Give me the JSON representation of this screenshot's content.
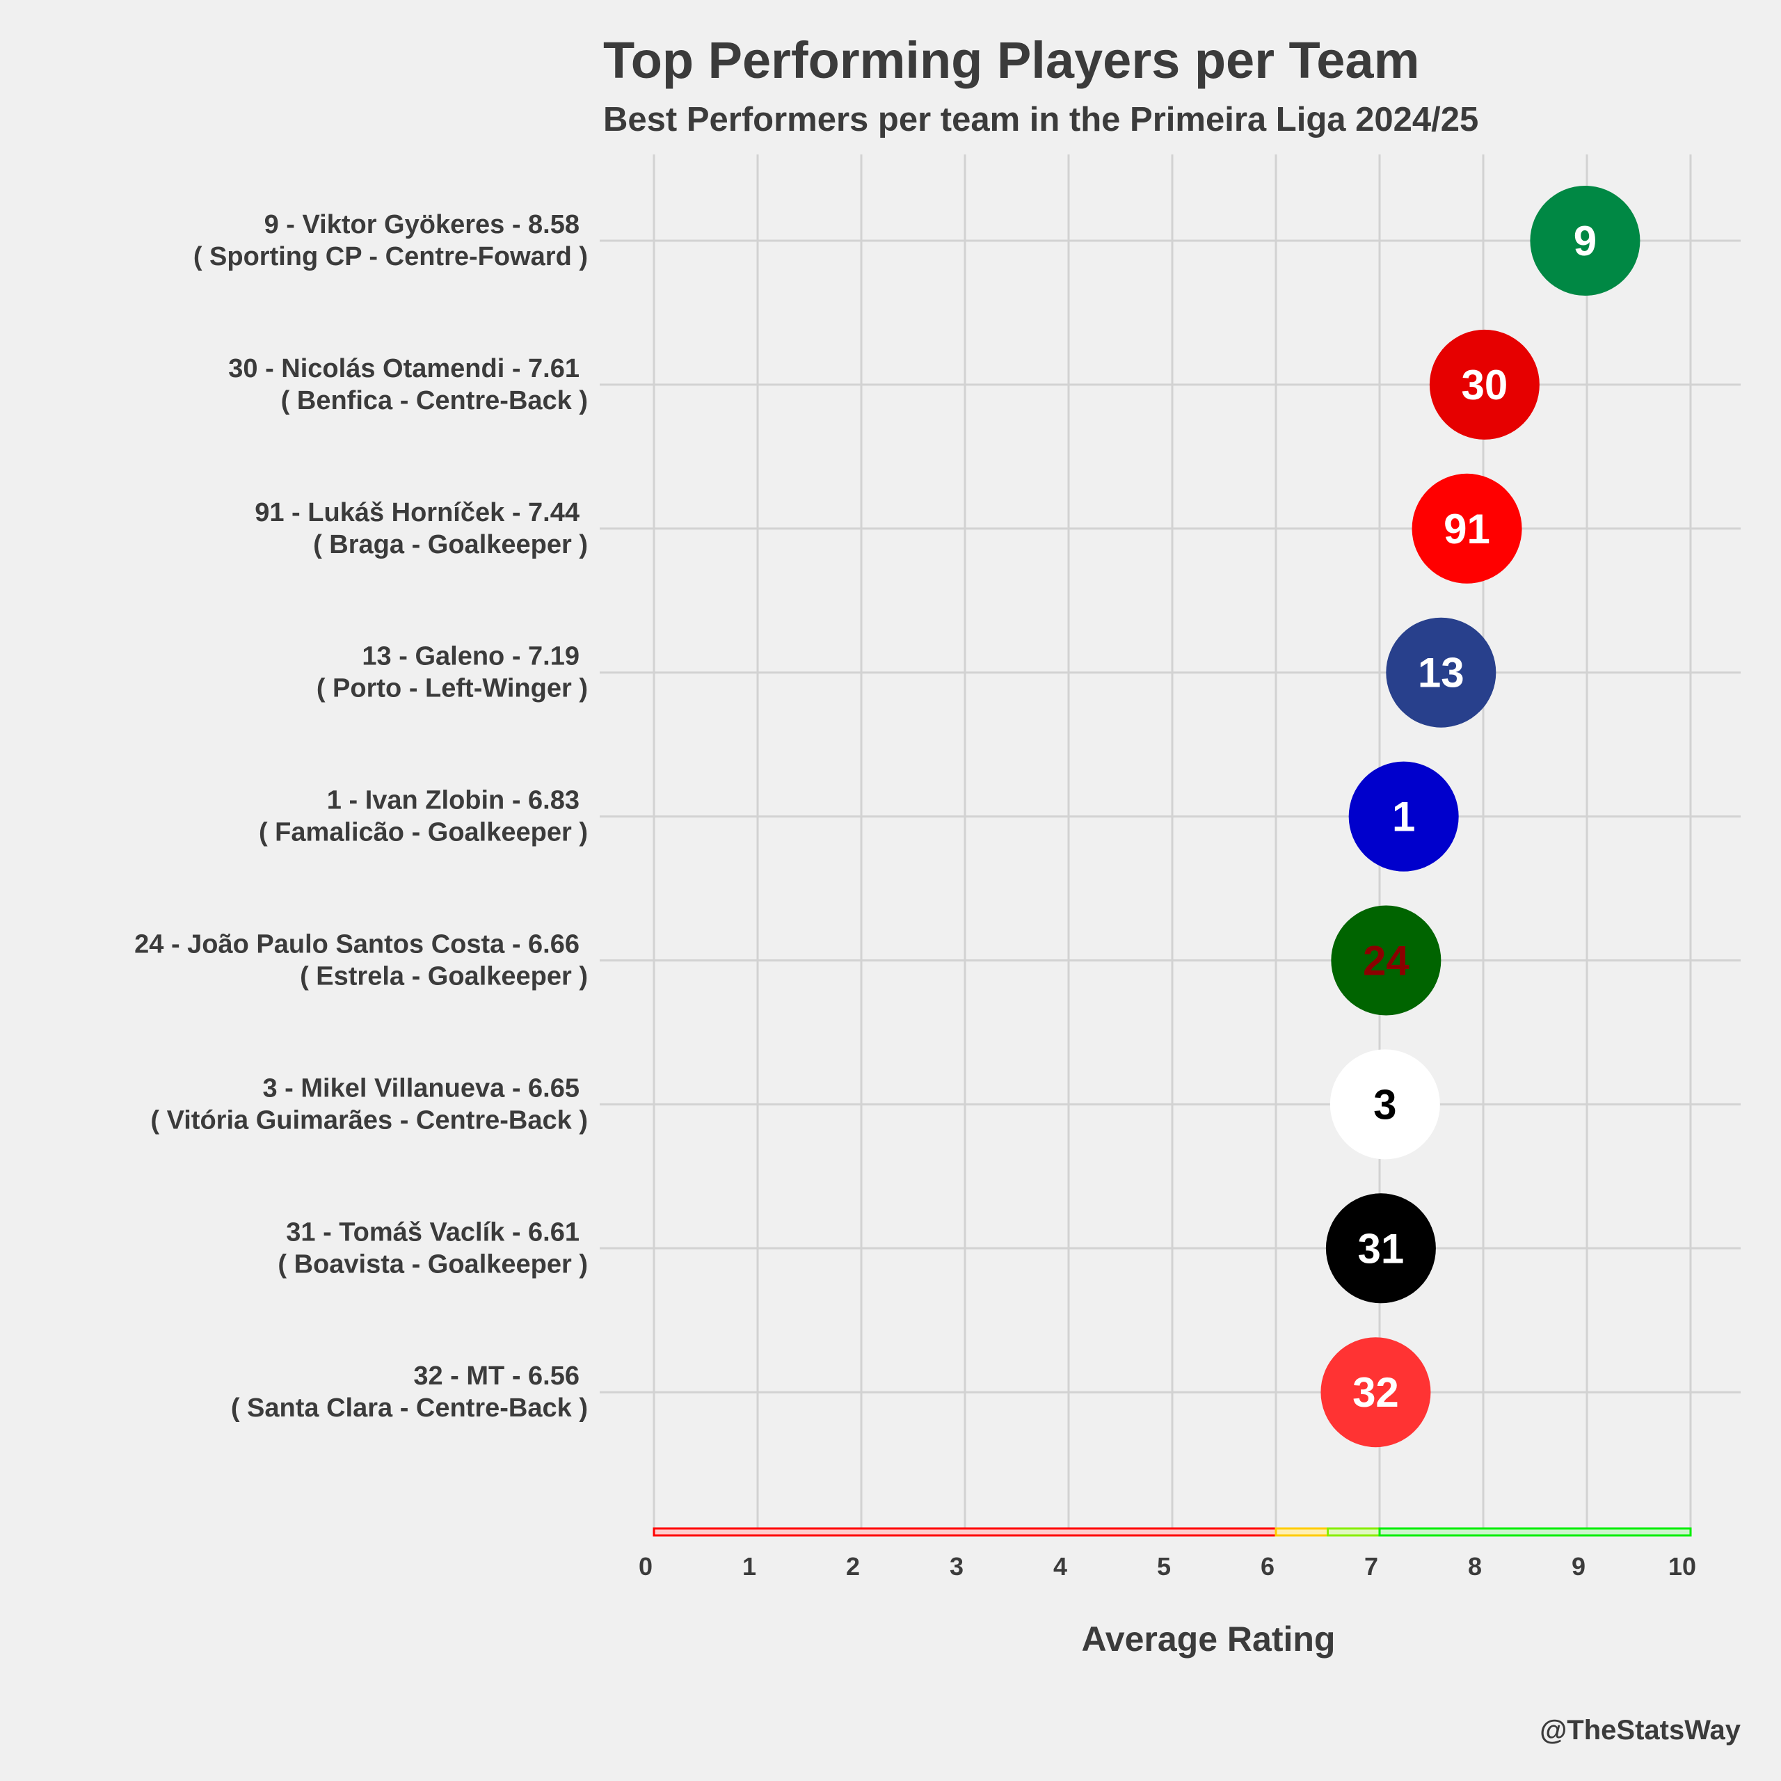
{
  "chart_data": {
    "type": "scatter",
    "title": "Top Performing Players per Team",
    "subtitle": "Best Performers per team in the Primeira Liga 2024/25",
    "xlabel": "Average Rating",
    "ylabel": "",
    "xlim": [
      0,
      10
    ],
    "x_ticks": [
      "0",
      "1",
      "2",
      "3",
      "4",
      "5",
      "6",
      "7",
      "8",
      "9",
      "10"
    ],
    "grid": true,
    "credit": "@TheStatsWay",
    "points": [
      {
        "label_line1": "9 - Viktor Gyökeres - 8.58",
        "label_line2": "( Sporting CP - Centre-Foward )",
        "number": "9",
        "rating": 8.58,
        "fill": "#008844",
        "text_color": "#ffffff"
      },
      {
        "label_line1": "30 - Nicolás Otamendi - 7.61",
        "label_line2": "( Benfica - Centre-Back )",
        "number": "30",
        "rating": 7.61,
        "fill": "#e60000",
        "text_color": "#ffffff"
      },
      {
        "label_line1": "91 - Lukáš Horníček - 7.44",
        "label_line2": "( Braga - Goalkeeper )",
        "number": "91",
        "rating": 7.44,
        "fill": "#ff0000",
        "text_color": "#ffffff"
      },
      {
        "label_line1": "13 - Galeno - 7.19",
        "label_line2": "( Porto - Left-Winger )",
        "number": "13",
        "rating": 7.19,
        "fill": "#28408c",
        "text_color": "#ffffff"
      },
      {
        "label_line1": "1 - Ivan Zlobin - 6.83",
        "label_line2": "( Famalicão - Goalkeeper )",
        "number": "1",
        "rating": 6.83,
        "fill": "#0000cc",
        "text_color": "#ffffff"
      },
      {
        "label_line1": "24 - João Paulo Santos Costa - 6.66",
        "label_line2": "( Estrela - Goalkeeper )",
        "number": "24",
        "rating": 6.66,
        "fill": "#006400",
        "text_color": "#8b0000"
      },
      {
        "label_line1": "3 - Mikel Villanueva - 6.65",
        "label_line2": "( Vitória Guimarães - Centre-Back )",
        "number": "3",
        "rating": 6.65,
        "fill": "#ffffff",
        "text_color": "#000000"
      },
      {
        "label_line1": "31 - Tomáš Vaclík - 6.61",
        "label_line2": "( Boavista - Goalkeeper )",
        "number": "31",
        "rating": 6.61,
        "fill": "#000000",
        "text_color": "#ffffff"
      },
      {
        "label_line1": "32 - MT - 6.56",
        "label_line2": "( Santa Clara - Centre-Back )",
        "number": "32",
        "rating": 6.56,
        "fill": "#ff3333",
        "text_color": "#ffffff"
      }
    ],
    "rating_bands": [
      {
        "from": 0,
        "to": 6,
        "color": "#ff0000",
        "fill": "#ffcccc"
      },
      {
        "from": 6,
        "to": 6.5,
        "color": "#ffcc00",
        "fill": "#fff0b3"
      },
      {
        "from": 6.5,
        "to": 7,
        "color": "#88ee00",
        "fill": "#e0f8c0"
      },
      {
        "from": 7,
        "to": 10,
        "color": "#00ee00",
        "fill": "#ccf5cc"
      }
    ]
  }
}
